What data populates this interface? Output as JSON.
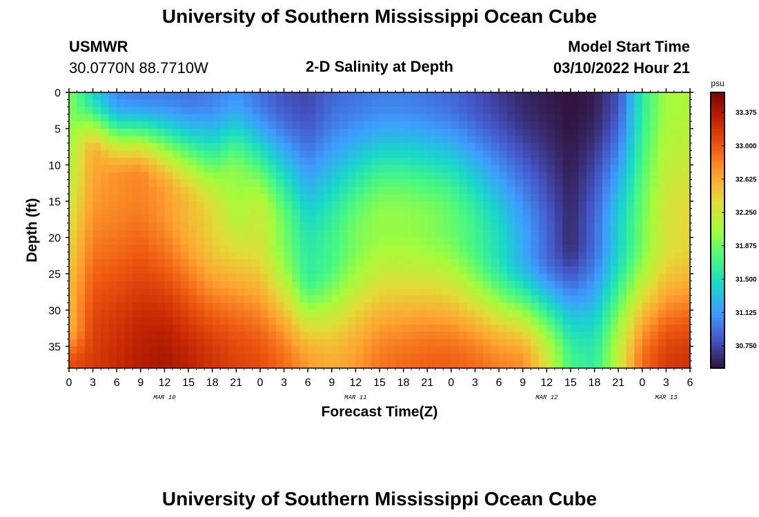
{
  "header": {
    "title": "University of Southern Mississippi Ocean Cube",
    "station": "USMWR",
    "coords": "30.0770N  88.7710W",
    "plot_title": "2-D Salinity at Depth",
    "start_label": "Model Start Time",
    "start_time": "03/10/2022 Hour 21"
  },
  "footer": {
    "title": "University of Southern Mississippi Ocean Cube"
  },
  "chart_data": {
    "type": "heatmap",
    "title": "2-D Salinity at Depth",
    "xlabel": "Forecast Time(Z)",
    "ylabel": "Depth (ft)",
    "x_ticks": [
      "0",
      "3",
      "6",
      "9",
      "12",
      "15",
      "18",
      "21",
      "0",
      "3",
      "6",
      "9",
      "12",
      "15",
      "18",
      "21",
      "0",
      "3",
      "6",
      "9",
      "12",
      "15",
      "18",
      "21",
      "0",
      "3",
      "6"
    ],
    "x_dates": [
      {
        "label": "MAR 10",
        "hour": 12
      },
      {
        "label": "MAR 11",
        "hour": 36
      },
      {
        "label": "MAR 12",
        "hour": 60
      },
      {
        "label": "MAR 13",
        "hour": 75
      }
    ],
    "x_range_hours": [
      0,
      78
    ],
    "y_ticks": [
      0,
      5,
      10,
      15,
      20,
      25,
      30,
      35
    ],
    "y_range_ft": [
      0,
      38
    ],
    "colorbar": {
      "unit": "psu",
      "ticks": [
        "33.375",
        "33.000",
        "32.625",
        "32.250",
        "31.875",
        "31.500",
        "31.125",
        "30.750"
      ],
      "range": [
        30.5,
        33.6
      ],
      "colors": [
        "#30123b",
        "#4454c4",
        "#3e9cfe",
        "#18d7cb",
        "#48f882",
        "#a4fc3c",
        "#e2dc38",
        "#fea331",
        "#ef5911",
        "#c22402",
        "#7a0403"
      ]
    },
    "salinity_profiles": [
      {
        "time_h": 0,
        "surface": 31.95,
        "mid_depth": 32.05,
        "mid_value": 32.55,
        "bottom": 33.05
      },
      {
        "time_h": 3,
        "surface": 31.45,
        "mid_depth": 9,
        "mid_value": 32.65,
        "bottom": 33.15
      },
      {
        "time_h": 6,
        "surface": 31.05,
        "mid_depth": 12,
        "mid_value": 32.75,
        "bottom": 33.25
      },
      {
        "time_h": 9,
        "surface": 31.0,
        "mid_depth": 12,
        "mid_value": 32.8,
        "bottom": 33.35
      },
      {
        "time_h": 12,
        "surface": 31.0,
        "mid_depth": 14,
        "mid_value": 32.7,
        "bottom": 33.4
      },
      {
        "time_h": 15,
        "surface": 30.95,
        "mid_depth": 16,
        "mid_value": 32.55,
        "bottom": 33.3
      },
      {
        "time_h": 18,
        "surface": 31.0,
        "mid_depth": 18,
        "mid_value": 32.4,
        "bottom": 33.2
      },
      {
        "time_h": 21,
        "surface": 31.1,
        "mid_depth": 12,
        "mid_value": 32.0,
        "bottom": 33.1
      },
      {
        "time_h": 24,
        "surface": 30.95,
        "mid_depth": 18,
        "mid_value": 32.25,
        "bottom": 33.05
      },
      {
        "time_h": 27,
        "surface": 30.8,
        "mid_depth": 20,
        "mid_value": 31.9,
        "bottom": 32.9
      },
      {
        "time_h": 30,
        "surface": 30.75,
        "mid_depth": 24,
        "mid_value": 31.6,
        "bottom": 32.7
      },
      {
        "time_h": 33,
        "surface": 30.9,
        "mid_depth": 22,
        "mid_value": 31.7,
        "bottom": 32.6
      },
      {
        "time_h": 36,
        "surface": 30.95,
        "mid_depth": 20,
        "mid_value": 31.9,
        "bottom": 32.7
      },
      {
        "time_h": 39,
        "surface": 31.0,
        "mid_depth": 18,
        "mid_value": 32.0,
        "bottom": 32.85
      },
      {
        "time_h": 42,
        "surface": 31.0,
        "mid_depth": 18,
        "mid_value": 32.0,
        "bottom": 32.9
      },
      {
        "time_h": 45,
        "surface": 30.95,
        "mid_depth": 18,
        "mid_value": 31.95,
        "bottom": 32.95
      },
      {
        "time_h": 48,
        "surface": 30.9,
        "mid_depth": 18,
        "mid_value": 31.85,
        "bottom": 32.95
      },
      {
        "time_h": 51,
        "surface": 30.8,
        "mid_depth": 20,
        "mid_value": 31.7,
        "bottom": 32.9
      },
      {
        "time_h": 54,
        "surface": 30.7,
        "mid_depth": 22,
        "mid_value": 31.5,
        "bottom": 32.8
      },
      {
        "time_h": 57,
        "surface": 30.6,
        "mid_depth": 22,
        "mid_value": 31.2,
        "bottom": 32.75
      },
      {
        "time_h": 60,
        "surface": 30.55,
        "mid_depth": 22,
        "mid_value": 30.9,
        "bottom": 32.3
      },
      {
        "time_h": 63,
        "surface": 30.5,
        "mid_depth": 20,
        "mid_value": 30.6,
        "bottom": 31.7
      },
      {
        "time_h": 66,
        "surface": 30.55,
        "mid_depth": 20,
        "mid_value": 30.9,
        "bottom": 31.6
      },
      {
        "time_h": 69,
        "surface": 30.8,
        "mid_depth": 20,
        "mid_value": 31.4,
        "bottom": 32.2
      },
      {
        "time_h": 72,
        "surface": 31.6,
        "mid_depth": 20,
        "mid_value": 31.9,
        "bottom": 32.9
      },
      {
        "time_h": 75,
        "surface": 32.05,
        "mid_depth": 20,
        "mid_value": 32.3,
        "bottom": 33.15
      },
      {
        "time_h": 78,
        "surface": 32.1,
        "mid_depth": 20,
        "mid_value": 32.4,
        "bottom": 33.2
      }
    ]
  }
}
